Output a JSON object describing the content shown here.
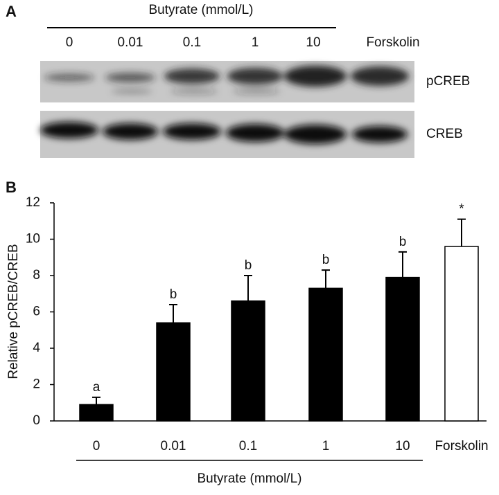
{
  "blot": {
    "panel": "A",
    "header": "Butyrate (mmol/L)",
    "lanes": [
      "0",
      "0.01",
      "0.1",
      "1",
      "10",
      "Forskolin"
    ],
    "rows": [
      "pCREB",
      "CREB"
    ]
  },
  "chart_data": {
    "type": "bar",
    "panel": "B",
    "ylabel": "Relative pCREB/CREB",
    "group_label": "Butyrate (mmol/L)",
    "categories": [
      "0",
      "0.01",
      "0.1",
      "1",
      "10",
      "Forskolin"
    ],
    "values": [
      0.9,
      5.4,
      6.6,
      7.3,
      7.9,
      9.6
    ],
    "errors": [
      0.4,
      1.0,
      1.4,
      1.0,
      1.4,
      1.5
    ],
    "annotations": [
      "a",
      "b",
      "b",
      "b",
      "b",
      "*"
    ],
    "colors": [
      "#000000",
      "#000000",
      "#000000",
      "#000000",
      "#000000",
      "#ffffff"
    ],
    "ylim": [
      0,
      12
    ],
    "yticks": [
      0,
      2,
      4,
      6,
      8,
      10,
      12
    ],
    "grid": false
  }
}
